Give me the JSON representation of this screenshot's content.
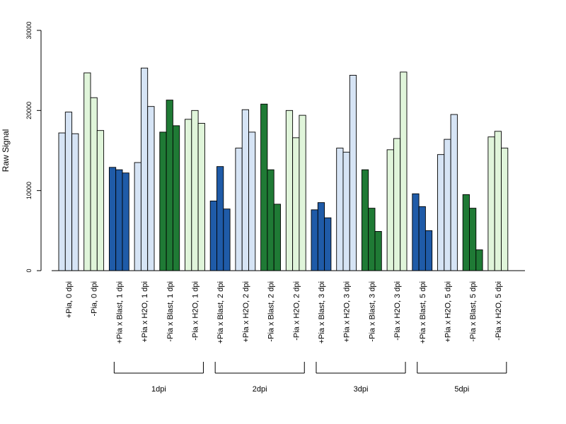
{
  "chart_data": {
    "type": "bar",
    "title": "",
    "ylabel": "Raw Signal",
    "xlabel": "",
    "ylim": [
      0,
      30000
    ],
    "yticks": [
      0,
      10000,
      20000,
      30000
    ],
    "grid": false,
    "colors": {
      "light_blue": "#d6e4f5",
      "light_green": "#e0f5da",
      "dark_blue": "#1f5ba8",
      "dark_green": "#1f7a35"
    },
    "groups": [
      {
        "label": "+Pia, 0 dpi",
        "color": "#d6e4f5",
        "values": [
          17200,
          19800,
          17100
        ]
      },
      {
        "label": "-Pia, 0 dpi",
        "color": "#e0f5da",
        "values": [
          24700,
          21600,
          17500
        ]
      },
      {
        "label": "+Pia x Blast, 1 dpi",
        "color": "#1f5ba8",
        "values": [
          12900,
          12600,
          12200
        ]
      },
      {
        "label": "+Pia x H2O, 1 dpi",
        "color": "#d6e4f5",
        "values": [
          13500,
          25300,
          20500
        ]
      },
      {
        "label": "-Pia x Blast, 1 dpi",
        "color": "#1f7a35",
        "values": [
          17300,
          21300,
          18100
        ]
      },
      {
        "label": "-Pia x H2O, 1 dpi",
        "color": "#e0f5da",
        "values": [
          18900,
          20000,
          18400
        ]
      },
      {
        "label": "+Pia x Blast, 2 dpi",
        "color": "#1f5ba8",
        "values": [
          8700,
          13000,
          7700
        ]
      },
      {
        "label": "+Pia x H2O, 2 dpi",
        "color": "#d6e4f5",
        "values": [
          15300,
          20100,
          17300
        ]
      },
      {
        "label": "-Pia x Blast, 2 dpi",
        "color": "#1f7a35",
        "values": [
          20800,
          12600,
          8300
        ]
      },
      {
        "label": "-Pia x H2O, 2 dpi",
        "color": "#e0f5da",
        "values": [
          20000,
          16600,
          19400
        ]
      },
      {
        "label": "+Pia x Blast, 3 dpi",
        "color": "#1f5ba8",
        "values": [
          7600,
          8500,
          6600
        ]
      },
      {
        "label": "+Pia x H2O, 3 dpi",
        "color": "#d6e4f5",
        "values": [
          15300,
          14800,
          24400
        ]
      },
      {
        "label": "-Pia x Blast, 3 dpi",
        "color": "#1f7a35",
        "values": [
          12600,
          7800,
          4900
        ]
      },
      {
        "label": "-Pia x H2O, 3 dpi",
        "color": "#e0f5da",
        "values": [
          15100,
          16500,
          24800
        ]
      },
      {
        "label": "+Pia x Blast, 5 dpi",
        "color": "#1f5ba8",
        "values": [
          9600,
          8000,
          5000
        ]
      },
      {
        "label": "+Pia x H2O, 5 dpi",
        "color": "#d6e4f5",
        "values": [
          14500,
          16400,
          19500
        ]
      },
      {
        "label": "-Pia x Blast, 5 dpi",
        "color": "#1f7a35",
        "values": [
          9500,
          7800,
          2600
        ]
      },
      {
        "label": "-Pia x H2O, 5 dpi",
        "color": "#e0f5da",
        "values": [
          16700,
          17400,
          15300
        ]
      }
    ],
    "brackets": [
      {
        "label": "1dpi",
        "from": 2,
        "to": 5
      },
      {
        "label": "2dpi",
        "from": 6,
        "to": 9
      },
      {
        "label": "3dpi",
        "from": 10,
        "to": 13
      },
      {
        "label": "5dpi",
        "from": 14,
        "to": 17
      }
    ]
  }
}
